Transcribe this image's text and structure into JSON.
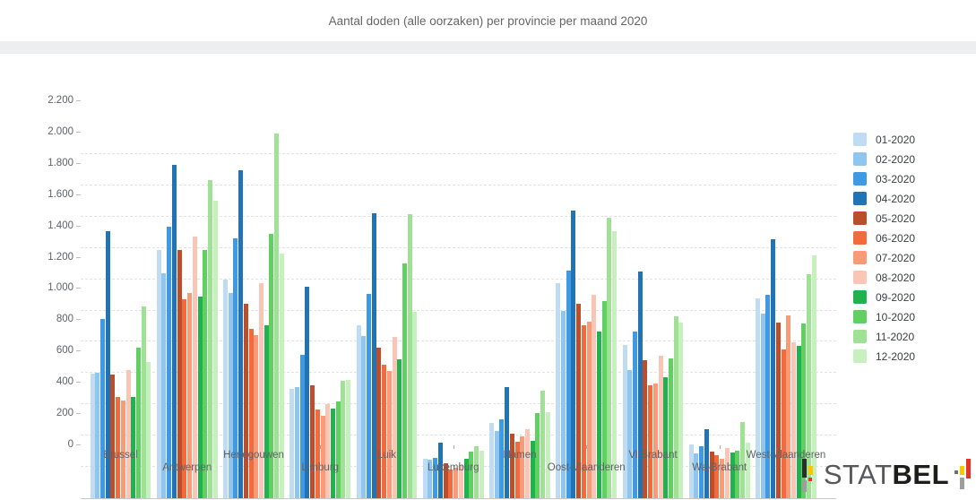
{
  "header": {
    "title": "Aantal doden (alle oorzaken) per provincie per maand 2020"
  },
  "chart_data": {
    "type": "bar",
    "title": "Aantal doden (alle oorzaken) per provincie per maand 2020",
    "xlabel": "",
    "ylabel": "",
    "ylim": [
      0,
      2200
    ],
    "grid": "horizontal-dashed",
    "legend_position": "right",
    "y_ticks": [
      "0",
      "200",
      "400",
      "600",
      "800",
      "1.000",
      "1.200",
      "1.400",
      "1.600",
      "1.800",
      "2.000",
      "2.200"
    ],
    "categories": [
      "Brussel",
      "Antwerpen",
      "Henegouwen",
      "Limburg",
      "Luik",
      "Luxemburg",
      "Namen",
      "Oost-Vlaanderen",
      "Vl-Brabant",
      "Wa-Brabant",
      "West-Vlaanderen"
    ],
    "series": [
      {
        "name": "01-2020",
        "color": "#BFDCF2",
        "values": [
          795,
          1585,
          1400,
          700,
          1105,
          250,
          480,
          1375,
          980,
          345,
          1280
        ]
      },
      {
        "name": "02-2020",
        "color": "#8EC6F0",
        "values": [
          800,
          1440,
          1310,
          710,
          1035,
          245,
          430,
          1200,
          820,
          285,
          1180
        ]
      },
      {
        "name": "03-2020",
        "color": "#3D9AE3",
        "values": [
          1145,
          1735,
          1660,
          915,
          1305,
          260,
          505,
          1455,
          1065,
          335,
          1300
        ]
      },
      {
        "name": "04-2020",
        "color": "#2173B4",
        "values": [
          1705,
          2130,
          2100,
          1355,
          1820,
          355,
          710,
          1840,
          1450,
          440,
          1655
        ]
      },
      {
        "name": "05-2020",
        "color": "#BC4E2B",
        "values": [
          790,
          1585,
          1245,
          720,
          960,
          225,
          415,
          1245,
          885,
          300,
          1125
        ]
      },
      {
        "name": "06-2020",
        "color": "#F26B3C",
        "values": [
          645,
          1275,
          1085,
          570,
          855,
          185,
          360,
          1105,
          725,
          275,
          950
        ]
      },
      {
        "name": "07-2020",
        "color": "#F99A78",
        "values": [
          625,
          1315,
          1045,
          525,
          815,
          195,
          395,
          1130,
          735,
          250,
          1170
        ]
      },
      {
        "name": "08-2020",
        "color": "#FAC5B4",
        "values": [
          820,
          1675,
          1375,
          600,
          1030,
          215,
          440,
          1300,
          910,
          320,
          1000
        ]
      },
      {
        "name": "09-2020",
        "color": "#1FB24E",
        "values": [
          650,
          1290,
          1105,
          575,
          890,
          250,
          365,
          1065,
          775,
          295,
          975
        ]
      },
      {
        "name": "10-2020",
        "color": "#60D060",
        "values": [
          960,
          1585,
          1690,
          620,
          1500,
          300,
          545,
          1260,
          895,
          305,
          1120
        ]
      },
      {
        "name": "11-2020",
        "color": "#9FE295",
        "values": [
          1225,
          2035,
          2330,
          750,
          1815,
          330,
          690,
          1795,
          1165,
          490,
          1430
        ]
      },
      {
        "name": "12-2020",
        "color": "#C6F0BE",
        "values": [
          870,
          1900,
          1565,
          755,
          1190,
          305,
          550,
          1710,
          1125,
          355,
          1555
        ]
      }
    ]
  },
  "logo": {
    "text_regular": "STAT",
    "text_bold": "BEL"
  }
}
